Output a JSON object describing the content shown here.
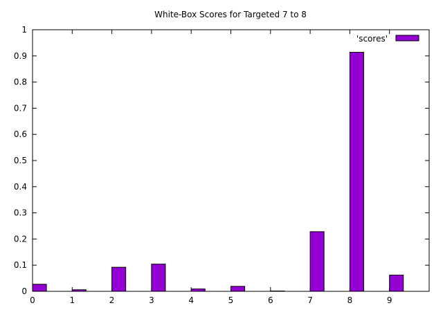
{
  "chart_data": {
    "type": "bar",
    "title": "White-Box Scores for Targeted 7 to 8",
    "xlabel": "",
    "ylabel": "",
    "categories": [
      "0",
      "1",
      "2",
      "3",
      "4",
      "5",
      "6",
      "7",
      "8",
      "9"
    ],
    "series": [
      {
        "name": "'scores'",
        "color": "#9400d3",
        "values": [
          0.027,
          0.006,
          0.092,
          0.104,
          0.009,
          0.019,
          0.001,
          0.228,
          0.914,
          0.062
        ]
      }
    ],
    "xlim": [
      0,
      10
    ],
    "ylim": [
      0,
      1
    ],
    "yticks": [
      "0",
      "0.1",
      "0.2",
      "0.3",
      "0.4",
      "0.5",
      "0.6",
      "0.7",
      "0.8",
      "0.9",
      "1"
    ],
    "grid": false,
    "legend_position": "top-right"
  }
}
